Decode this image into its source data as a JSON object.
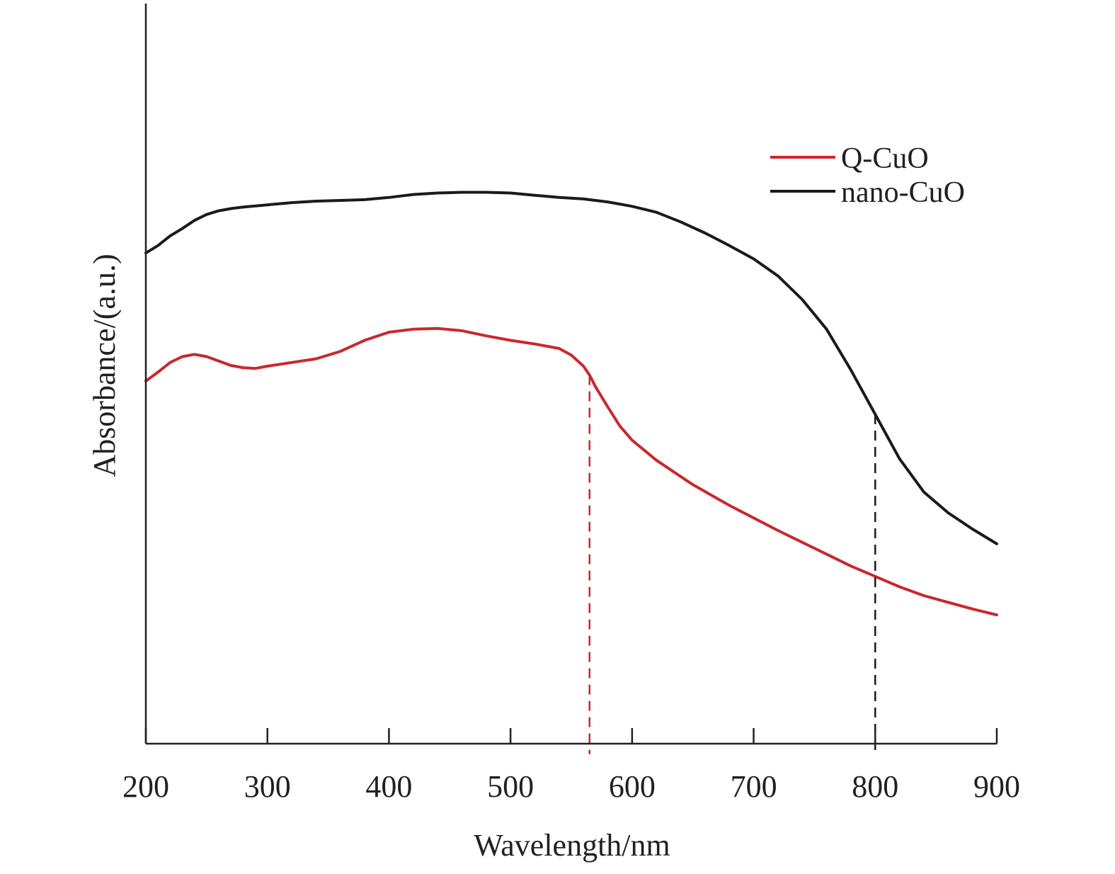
{
  "chart_data": {
    "type": "line",
    "title": "",
    "xlabel": "Wavelength/nm",
    "ylabel": "Absorbance/(a.u.)",
    "xlim": [
      200,
      900
    ],
    "ylim": [
      0,
      100
    ],
    "x_ticks": [
      200,
      300,
      400,
      500,
      600,
      700,
      800,
      900
    ],
    "y_ticks": [],
    "grid": false,
    "legend_position": "top-right",
    "series": [
      {
        "name": "Q-CuO",
        "color": "#c8282d",
        "x": [
          200,
          210,
          220,
          230,
          240,
          250,
          260,
          270,
          280,
          290,
          300,
          320,
          340,
          360,
          380,
          400,
          420,
          440,
          460,
          480,
          500,
          520,
          540,
          550,
          560,
          565,
          570,
          580,
          590,
          600,
          620,
          650,
          680,
          700,
          720,
          750,
          780,
          800,
          820,
          840,
          860,
          880,
          900
        ],
        "values": [
          49,
          50.2,
          51.5,
          52.3,
          52.6,
          52.3,
          51.7,
          51.1,
          50.8,
          50.7,
          51.0,
          51.5,
          52.0,
          53.0,
          54.5,
          55.6,
          56.0,
          56.1,
          55.8,
          55.1,
          54.5,
          54.0,
          53.4,
          52.5,
          51.0,
          49.8,
          48.2,
          45.5,
          42.9,
          41.0,
          38.3,
          35.0,
          32.2,
          30.5,
          28.8,
          26.4,
          24.0,
          22.6,
          21.2,
          20.0,
          19.1,
          18.2,
          17.4
        ]
      },
      {
        "name": "nano-CuO",
        "color": "#1a1a1a",
        "x": [
          200,
          210,
          220,
          230,
          240,
          250,
          260,
          270,
          280,
          300,
          320,
          340,
          360,
          380,
          400,
          420,
          440,
          460,
          480,
          500,
          520,
          540,
          560,
          580,
          600,
          620,
          640,
          660,
          680,
          700,
          720,
          740,
          760,
          780,
          800,
          820,
          840,
          860,
          880,
          900
        ],
        "values": [
          66.3,
          67.3,
          68.6,
          69.6,
          70.7,
          71.5,
          72.0,
          72.3,
          72.5,
          72.8,
          73.1,
          73.3,
          73.4,
          73.5,
          73.8,
          74.2,
          74.4,
          74.5,
          74.5,
          74.4,
          74.1,
          73.8,
          73.6,
          73.2,
          72.6,
          71.8,
          70.5,
          69.0,
          67.3,
          65.5,
          63.2,
          60.0,
          56.0,
          50.5,
          44.5,
          38.5,
          34.0,
          31.2,
          29.0,
          27.0
        ]
      }
    ],
    "annotations": [
      {
        "type": "vertical-dashed-line",
        "x": 565,
        "color": "#c8282d",
        "from_series": "Q-CuO"
      },
      {
        "type": "vertical-dashed-line",
        "x": 800,
        "color": "#1a1a1a",
        "from_series": "nano-CuO"
      }
    ]
  }
}
